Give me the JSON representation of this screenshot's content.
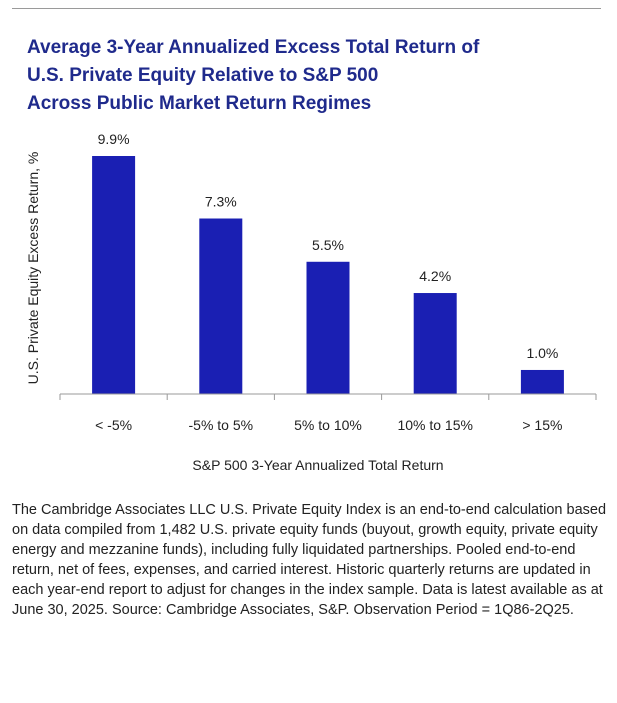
{
  "chart_data": {
    "type": "bar",
    "title_lines": [
      "Average 3-Year Annualized Excess Total Return of",
      "U.S. Private Equity Relative to S&P 500",
      "Across Public Market Return Regimes"
    ],
    "categories": [
      "< -5%",
      "-5% to 5%",
      "5% to 10%",
      "10% to 15%",
      "> 15%"
    ],
    "values": [
      9.9,
      7.3,
      5.5,
      4.2,
      1.0
    ],
    "data_labels": [
      "9.9%",
      "7.3%",
      "5.5%",
      "4.2%",
      "1.0%"
    ],
    "xlabel": "S&P 500 3-Year Annualized Total Return",
    "ylabel": "U.S. Private Equity Excess Return, %",
    "ylim": [
      0,
      10
    ],
    "grid": false,
    "legend": "none",
    "bar_color": "#1a1fb3"
  },
  "footnote": "The Cambridge Associates LLC U.S. Private Equity Index is an end-to-end calculation based on data compiled from 1,482 U.S. private equity funds (buyout, growth equity, private equity energy and mezzanine funds), including fully liquidated partnerships. Pooled end-to-end return, net of fees, expenses, and carried interest. Historic quarterly returns are updated in each year-end report to adjust for changes in the index sample. Data is latest available as at June 30, 2025. Source: Cambridge Associates, S&P. Observation Period = 1Q86-2Q25."
}
